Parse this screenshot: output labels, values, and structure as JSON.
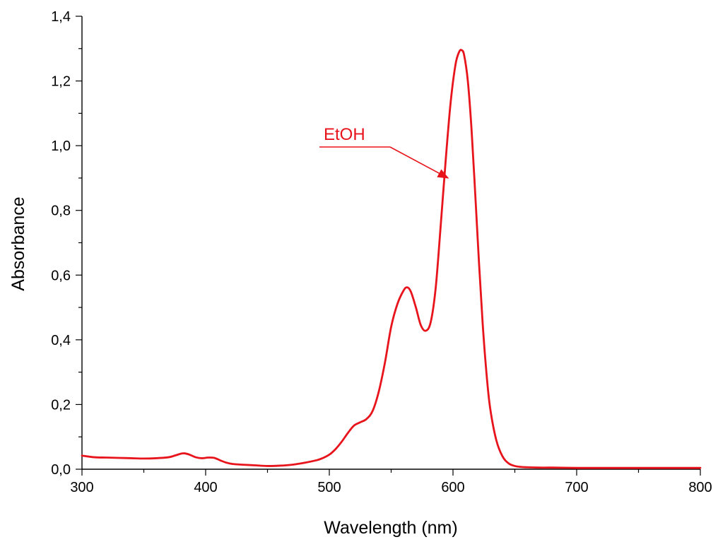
{
  "chart_data": {
    "type": "line",
    "title": "",
    "xlabel": "Wavelength (nm)",
    "ylabel": "Absorbance",
    "xlim": [
      300,
      800
    ],
    "ylim": [
      0.0,
      1.4
    ],
    "x_ticks": [
      300,
      400,
      500,
      600,
      700,
      800
    ],
    "x_tick_labels": [
      "300",
      "400",
      "500",
      "600",
      "700",
      "800"
    ],
    "y_ticks": [
      0.0,
      0.2,
      0.4,
      0.6,
      0.8,
      1.0,
      1.2,
      1.4
    ],
    "y_tick_labels": [
      "0,0",
      "0,2",
      "0,4",
      "0,6",
      "0,8",
      "1,0",
      "1,2",
      "1,4"
    ],
    "grid": false,
    "line_color": "#e8141c",
    "series": [
      {
        "name": "EtOH",
        "x": [
          300,
          310,
          320,
          330,
          340,
          350,
          360,
          370,
          375,
          380,
          383,
          387,
          392,
          397,
          402,
          407,
          412,
          417,
          422,
          430,
          440,
          450,
          460,
          470,
          480,
          490,
          495,
          500,
          505,
          510,
          515,
          520,
          525,
          530,
          535,
          540,
          545,
          550,
          555,
          560,
          563,
          566,
          570,
          574,
          578,
          582,
          586,
          590,
          594,
          598,
          602,
          605,
          607,
          609,
          612,
          615,
          618,
          621,
          624,
          627,
          630,
          635,
          640,
          645,
          650,
          655,
          660,
          670,
          680,
          700,
          720,
          750,
          780,
          800
        ],
        "y": [
          0.042,
          0.037,
          0.036,
          0.035,
          0.034,
          0.033,
          0.034,
          0.037,
          0.042,
          0.048,
          0.049,
          0.045,
          0.037,
          0.034,
          0.036,
          0.035,
          0.027,
          0.02,
          0.016,
          0.014,
          0.012,
          0.01,
          0.011,
          0.014,
          0.02,
          0.028,
          0.035,
          0.045,
          0.062,
          0.085,
          0.112,
          0.135,
          0.145,
          0.155,
          0.18,
          0.24,
          0.33,
          0.44,
          0.51,
          0.552,
          0.562,
          0.548,
          0.5,
          0.445,
          0.428,
          0.455,
          0.56,
          0.75,
          0.95,
          1.13,
          1.25,
          1.29,
          1.295,
          1.28,
          1.2,
          1.05,
          0.85,
          0.64,
          0.45,
          0.3,
          0.19,
          0.09,
          0.04,
          0.018,
          0.01,
          0.007,
          0.006,
          0.005,
          0.005,
          0.004,
          0.004,
          0.004,
          0.004,
          0.004
        ]
      }
    ],
    "annotations": [
      {
        "text": "EtOH",
        "arrow_to": [
          596,
          0.9
        ]
      }
    ]
  }
}
